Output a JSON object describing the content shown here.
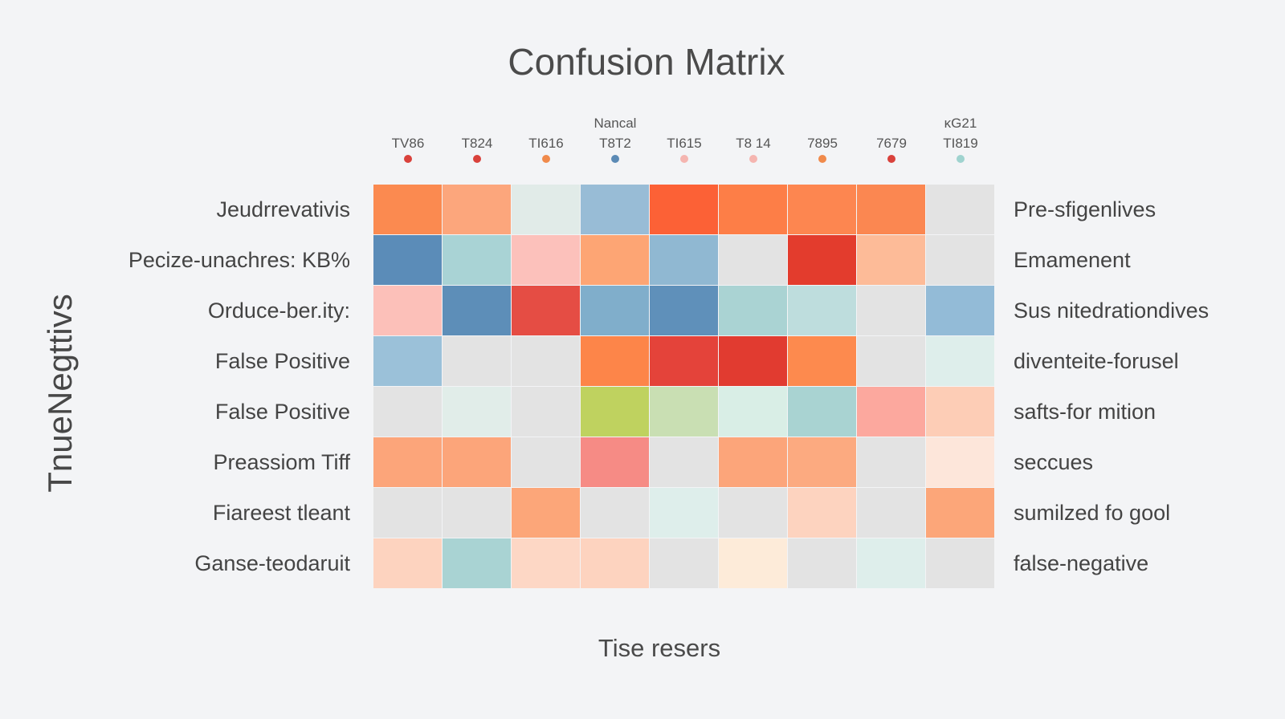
{
  "chart_data": {
    "type": "heatmap",
    "title": "Confusion Matrix",
    "ylabel": "TnueNegttivs",
    "xlabel": "Tise resers",
    "columns": [
      {
        "label": "TV86",
        "top": "",
        "dot": "#d9413b"
      },
      {
        "label": "T824",
        "top": "",
        "dot": "#d9413b"
      },
      {
        "label": "TI616",
        "top": "",
        "dot": "#f08a4b"
      },
      {
        "label": "T8T2",
        "top": "Nancal",
        "dot": "#5b8ab5"
      },
      {
        "label": "TI615",
        "top": "",
        "dot": "#f5b5b0"
      },
      {
        "label": "T8 14",
        "top": "",
        "dot": "#f5b5b0"
      },
      {
        "label": "7895",
        "top": "",
        "dot": "#f08a4b"
      },
      {
        "label": "7679",
        "top": "",
        "dot": "#d9413b"
      },
      {
        "label": "TI819",
        "top": "κG21",
        "dot": "#9fd3cf"
      }
    ],
    "rows_left": [
      "Jeudrrevativis",
      "Pecize-unachres: KB%",
      "Orduce-ber.ity:",
      "False Positive",
      "False Positive",
      "Preassiom Tiff",
      "Fiareest tleant",
      "Ganse-teodaruit"
    ],
    "rows_right": [
      "Pre-sfigenlives",
      "Emamenent",
      "Sus nitedrationdives",
      "diventeite-forusel",
      "safts-for mition",
      "seccues",
      "sumilzed fo gool",
      "false-negative"
    ],
    "cells": [
      [
        "#fb8a50",
        "#fca67c",
        "#e1ebe8",
        "#98bcd6",
        "#fc6136",
        "#fd7e47",
        "#fd8650",
        "#fb8751",
        "#e3e3e3"
      ],
      [
        "#5b8cb8",
        "#a9d3d5",
        "#fcc1bb",
        "#fda574",
        "#90b8d2",
        "#e3e3e3",
        "#e33c2d",
        "#fdbb98",
        "#e3e3e3"
      ],
      [
        "#fcc0b9",
        "#5d8eb8",
        "#e54d44",
        "#80aecb",
        "#5f90ba",
        "#aad3d3",
        "#bedddd",
        "#e3e3e3",
        "#93bbd7"
      ],
      [
        "#9bc1d9",
        "#e3e3e3",
        "#e3e3e3",
        "#fd8549",
        "#e4433a",
        "#e13b30",
        "#fd8a4e",
        "#e3e3e3",
        "#deeeeb"
      ],
      [
        "#e3e3e3",
        "#e1ede9",
        "#e3e3e3",
        "#bfd25f",
        "#c9dfb3",
        "#d9eee6",
        "#a9d3d2",
        "#fca89e",
        "#fdcdb6"
      ],
      [
        "#fca57a",
        "#fca57a",
        "#e3e3e3",
        "#f68b85",
        "#e3e3e3",
        "#fca57a",
        "#fcaa80",
        "#e3e3e3",
        "#fde6da"
      ],
      [
        "#e3e3e3",
        "#e3e3e3",
        "#fca679",
        "#e3e3e3",
        "#deeeeb",
        "#e3e3e3",
        "#fdd3bf",
        "#e3e3e3",
        "#fca679"
      ],
      [
        "#fdd3bf",
        "#a9d3d3",
        "#fdd7c5",
        "#fdd3bf",
        "#e3e3e3",
        "#fdebd9",
        "#e3e3e3",
        "#deeeeb",
        "#e3e3e3"
      ]
    ]
  }
}
